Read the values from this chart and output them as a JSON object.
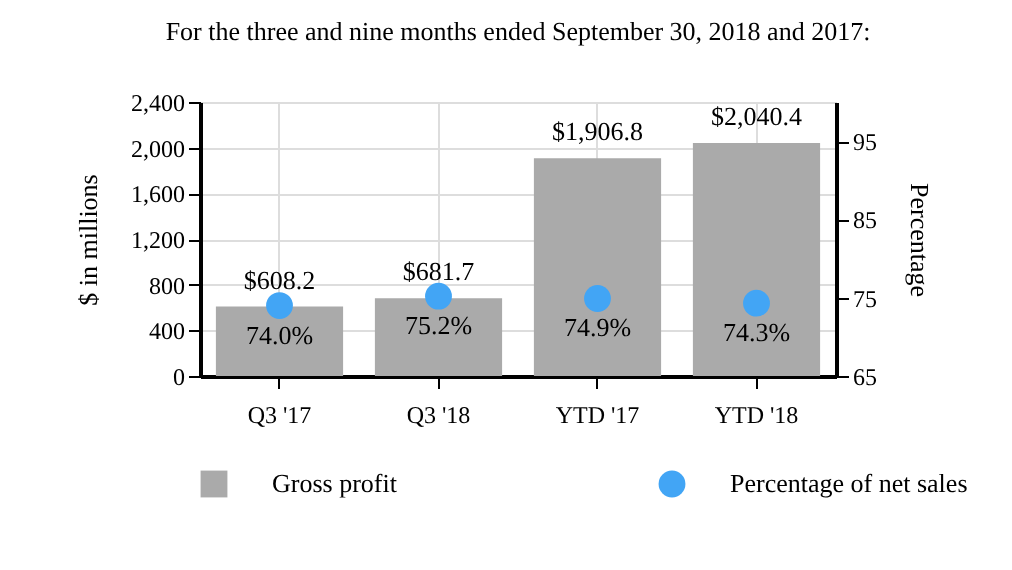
{
  "chart_data": {
    "type": "bar",
    "title": "For the three and nine months ended September 30, 2018 and 2017:",
    "ylabel": "$ in millions",
    "y2label": "Percentage",
    "categories": [
      "Q3 '17",
      "Q3 '18",
      "YTD '17",
      "YTD '18"
    ],
    "series": [
      {
        "name": "Gross profit",
        "color": "#aaaaaa",
        "values": [
          608.2,
          681.7,
          1906.8,
          2040.4
        ],
        "value_labels": [
          "$608.2",
          "$681.7",
          "$1,906.8",
          "$2,040.4"
        ]
      },
      {
        "name": "Percentage of net sales",
        "type": "scatter",
        "axis": "y2",
        "color": "#42a5f5",
        "values": [
          74.0,
          75.2,
          74.9,
          74.3
        ],
        "value_labels": [
          "74.0%",
          "75.2%",
          "74.9%",
          "74.3%"
        ]
      }
    ],
    "ylim": [
      0,
      2400
    ],
    "yticks": [
      0,
      400,
      800,
      {
        "value": 1200,
        "label": "1,200"
      },
      {
        "value": 1600,
        "label": "1,600"
      },
      {
        "value": 2000,
        "label": "2,000"
      },
      {
        "value": 2400,
        "label": "2,400"
      }
    ],
    "y2lim": [
      65,
      100
    ],
    "y2ticks": [
      65,
      75,
      85,
      95
    ],
    "grid": true,
    "legend": "bottom",
    "marker": "circle"
  }
}
